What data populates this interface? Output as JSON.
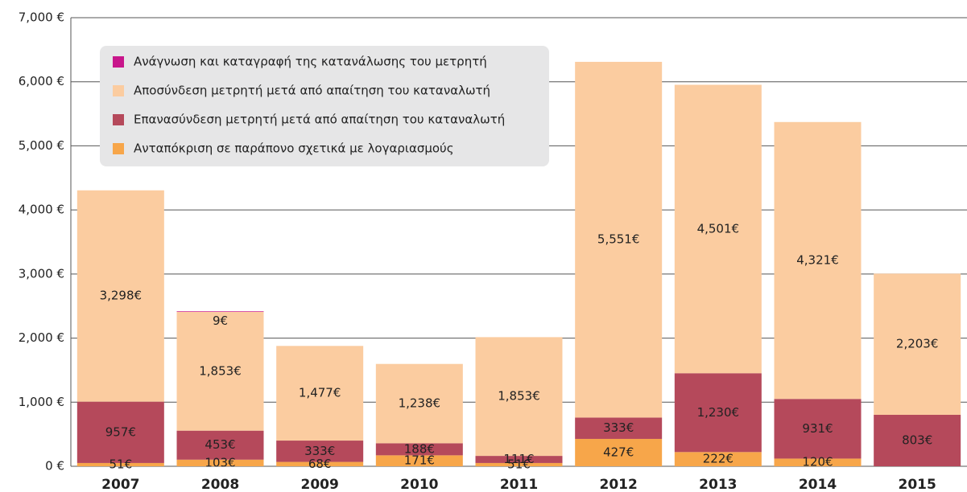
{
  "chart_data": {
    "type": "stacked_bar",
    "categories": [
      "2007",
      "2008",
      "2009",
      "2010",
      "2011",
      "2012",
      "2013",
      "2014",
      "2015"
    ],
    "series": [
      {
        "name": "Ανταπόκριση σε παράπονο σχετικά με λογαριασμούς",
        "color": "#f7a64a",
        "values": [
          51,
          103,
          68,
          171,
          51,
          427,
          222,
          120,
          null
        ],
        "value_labels": [
          "51€",
          "103€",
          "68€",
          "171€",
          "51€",
          "427€",
          "222€",
          "120€",
          null
        ]
      },
      {
        "name": "Επανασύνδεση μετρητή μετά από απαίτηση του καταναλωτή",
        "color": "#b5495b",
        "values": [
          957,
          453,
          333,
          188,
          111,
          333,
          1230,
          931,
          803
        ],
        "value_labels": [
          "957€",
          "453€",
          "333€",
          "188€",
          "111€",
          "333€",
          "1,230€",
          "931€",
          "803€"
        ]
      },
      {
        "name": "Αποσύνδεση μετρητή μετά από απαίτηση του καταναλωτή",
        "color": "#fbcca0",
        "values": [
          3298,
          1853,
          1477,
          1238,
          1853,
          5551,
          4501,
          4321,
          2203
        ],
        "value_labels": [
          "3,298€",
          "1,853€",
          "1,477€",
          "1,238€",
          "1,853€",
          "5,551€",
          "4,501€",
          "4,321€",
          "2,203€"
        ]
      },
      {
        "name": "Ανάγνωση και καταγραφή της κατανάλωσης του μετρητή",
        "color": "#c8168b",
        "values": [
          null,
          9,
          null,
          null,
          null,
          null,
          null,
          null,
          null
        ],
        "value_labels": [
          null,
          "9€",
          null,
          null,
          null,
          null,
          null,
          null,
          null
        ]
      }
    ],
    "ylim": [
      0,
      7000
    ],
    "yticks": [
      {
        "value": 0,
        "label": "0 €"
      },
      {
        "value": 1000,
        "label": "1,000 €"
      },
      {
        "value": 2000,
        "label": "2,000 €"
      },
      {
        "value": 3000,
        "label": "3,000 €"
      },
      {
        "value": 4000,
        "label": "4,000 €"
      },
      {
        "value": 5000,
        "label": "5,000 €"
      },
      {
        "value": 6000,
        "label": "6,000 €"
      },
      {
        "value": 7000,
        "label": "7,000 €"
      }
    ],
    "grid": true
  }
}
